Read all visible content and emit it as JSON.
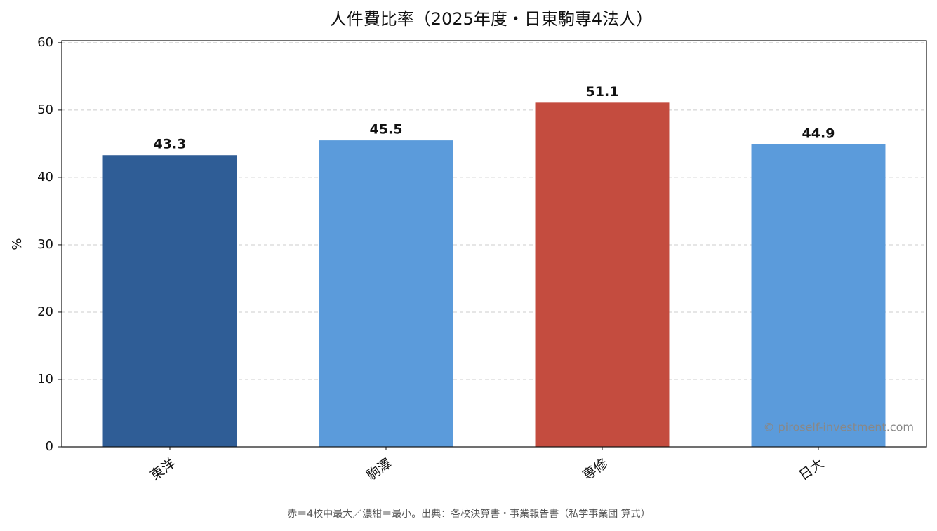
{
  "chart_data": {
    "type": "bar",
    "title": "人件費比率（2025年度・日東駒専4法人）",
    "y_label": "%",
    "categories": [
      "東洋",
      "駒澤",
      "専修",
      "日大"
    ],
    "values": [
      43.3,
      45.5,
      51.1,
      44.9
    ],
    "colors": [
      "#2f5d96",
      "#5b9bdb",
      "#c44c3f",
      "#5b9bdb"
    ],
    "ylim": [
      0,
      60.3
    ],
    "yticks": [
      0,
      10,
      20,
      30,
      40,
      50,
      60
    ],
    "grid": true,
    "watermark": "© piroself-investment.com",
    "footnote": "赤＝4校中最大／濃紺＝最小。出典：各校決算書・事業報告書（私学事業団 算式）"
  }
}
